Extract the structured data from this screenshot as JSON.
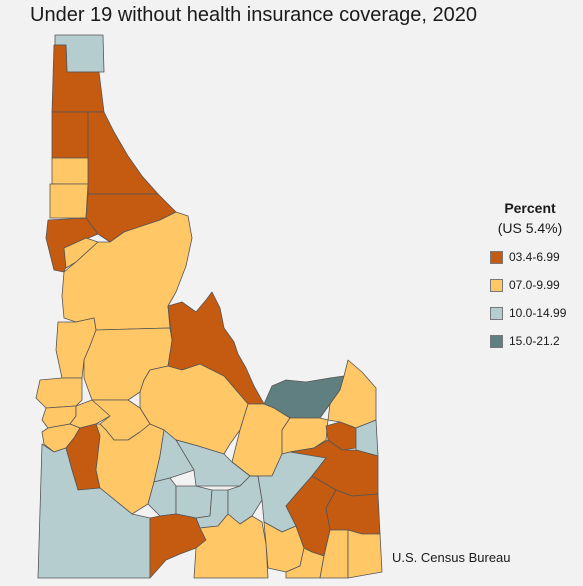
{
  "title": "Under 19 without health insurance coverage, 2020",
  "source": "U.S. Census Bureau",
  "colors": {
    "c1": "#c55a11",
    "c2": "#ffc766",
    "c3": "#b6cdd0",
    "c4": "#5f7f80"
  },
  "legend": {
    "title": "Percent",
    "subtitle": "(US 5.4%)",
    "items": [
      {
        "label": "03.4-6.99",
        "color": "#c55a11"
      },
      {
        "label": "07.0-9.99",
        "color": "#ffc766"
      },
      {
        "label": "10.0-14.99",
        "color": "#b6cdd0"
      },
      {
        "label": "15.0-21.2",
        "color": "#5f7f80"
      }
    ]
  }
}
